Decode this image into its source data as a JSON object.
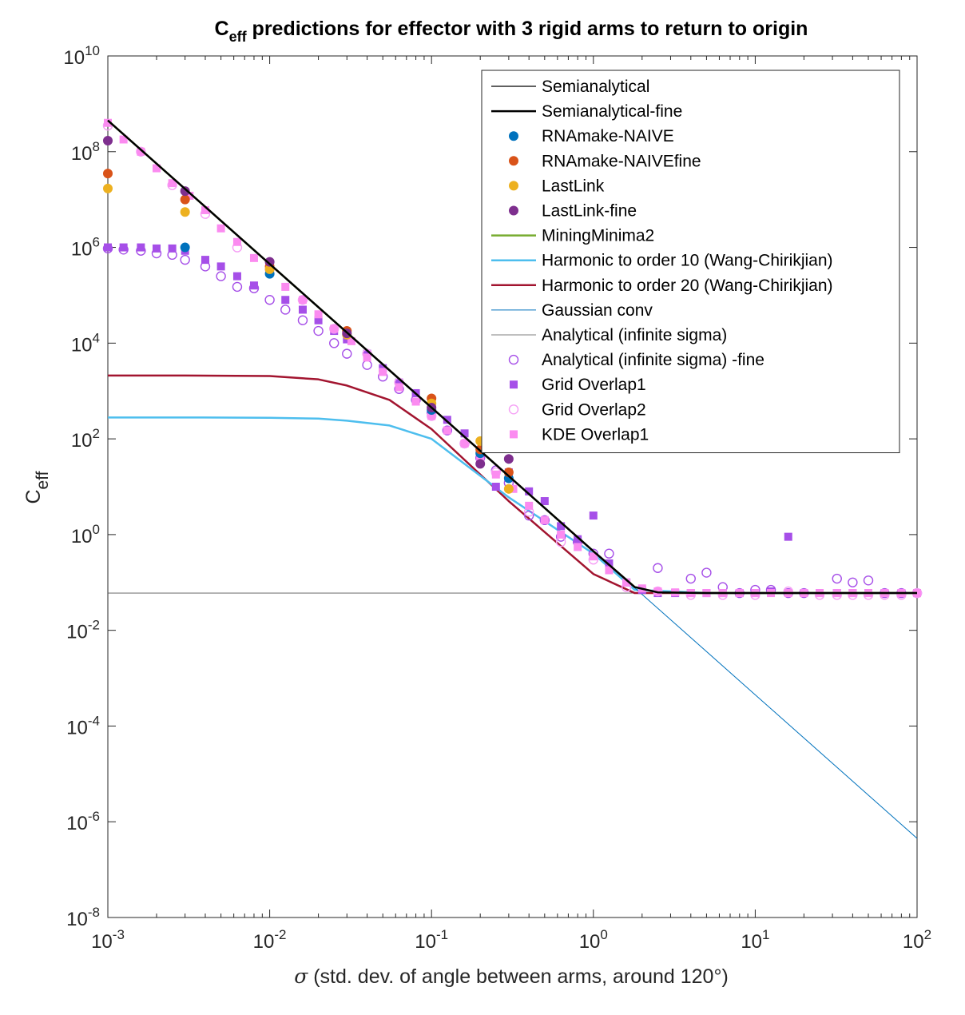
{
  "chart_data": {
    "type": "line",
    "title": "C",
    "title_sub": "eff",
    "title_rest": " predictions for effector with 3 rigid arms to return to origin",
    "xlabel_sym": "σ",
    "xlabel_rest": " (std. dev. of angle between arms, around 120°)",
    "ylabel": "C",
    "ylabel_sub": "eff",
    "xscale": "log",
    "yscale": "log",
    "xlim": [
      0.001,
      100
    ],
    "ylim": [
      1e-08,
      10000000000.0
    ],
    "x_ticks": [
      {
        "base": "10",
        "exp": "-3",
        "value": 0.001
      },
      {
        "base": "10",
        "exp": "-2",
        "value": 0.01
      },
      {
        "base": "10",
        "exp": "-1",
        "value": 0.1
      },
      {
        "base": "10",
        "exp": "0",
        "value": 1
      },
      {
        "base": "10",
        "exp": "1",
        "value": 10
      },
      {
        "base": "10",
        "exp": "2",
        "value": 100
      }
    ],
    "y_ticks": [
      {
        "base": "10",
        "exp": "-8",
        "value": 1e-08
      },
      {
        "base": "10",
        "exp": "-6",
        "value": 1e-06
      },
      {
        "base": "10",
        "exp": "-4",
        "value": 0.0001
      },
      {
        "base": "10",
        "exp": "-2",
        "value": 0.01
      },
      {
        "base": "10",
        "exp": "0",
        "value": 1
      },
      {
        "base": "10",
        "exp": "2",
        "value": 100.0
      },
      {
        "base": "10",
        "exp": "4",
        "value": 10000.0
      },
      {
        "base": "10",
        "exp": "6",
        "value": 1000000.0
      },
      {
        "base": "10",
        "exp": "8",
        "value": 100000000.0
      },
      {
        "base": "10",
        "exp": "10",
        "value": 10000000000.0
      }
    ],
    "grid": false,
    "legend_position": "top-right",
    "series": [
      {
        "name": "Semianalytical",
        "kind": "line",
        "color": "#000000",
        "width": 1.2,
        "x": [
          0.001,
          0.01,
          0.1,
          1,
          1.8,
          2.5,
          5,
          10,
          100
        ],
        "y": [
          450000000.0,
          450000.0,
          450,
          0.45,
          0.08,
          0.062,
          0.06,
          0.06,
          0.06
        ]
      },
      {
        "name": "Semianalytical-fine",
        "kind": "line",
        "color": "#000000",
        "width": 2.5,
        "x": [
          0.001,
          0.01,
          0.1,
          1,
          1.8,
          2.5,
          5,
          10,
          100
        ],
        "y": [
          450000000.0,
          450000.0,
          450,
          0.45,
          0.08,
          0.062,
          0.06,
          0.06,
          0.06
        ]
      },
      {
        "name": "RNAmake-NAIVE",
        "kind": "point",
        "marker": "dot",
        "color": "#0072BD",
        "x": [
          0.003,
          0.01,
          0.1,
          0.2,
          0.3
        ],
        "y": [
          1000000.0,
          280000,
          400,
          50,
          15
        ]
      },
      {
        "name": "RNAmake-NAIVEfine",
        "kind": "point",
        "marker": "dot",
        "color": "#D95319",
        "x": [
          0.001,
          0.003,
          0.01,
          0.03,
          0.1,
          0.2,
          0.3
        ],
        "y": [
          35000000.0,
          10000000.0,
          400000,
          18000,
          700,
          60,
          20
        ]
      },
      {
        "name": "LastLink",
        "kind": "point",
        "marker": "dot",
        "color": "#EDB120",
        "x": [
          0.001,
          0.003,
          0.01,
          0.03,
          0.1,
          0.2,
          0.3
        ],
        "y": [
          17000000.0,
          5500000.0,
          350000,
          15000,
          550,
          90,
          9
        ]
      },
      {
        "name": "LastLink-fine",
        "kind": "point",
        "marker": "dot",
        "color": "#7E2F8E",
        "x": [
          0.001,
          0.003,
          0.01,
          0.03,
          0.1,
          0.2,
          0.3
        ],
        "y": [
          170000000.0,
          15000000.0,
          500000,
          16000,
          450,
          30,
          38
        ]
      },
      {
        "name": "MiningMinima2",
        "kind": "line",
        "color": "#77AC30",
        "width": 2.5,
        "x": [
          0.001,
          0.01,
          0.1,
          1,
          1.8,
          2.5,
          5,
          10,
          100
        ],
        "y": [
          450000000.0,
          450000.0,
          450,
          0.45,
          0.08,
          0.062,
          0.06,
          0.06,
          0.06
        ]
      },
      {
        "name": "Harmonic to order 10 (Wang-Chirikjian)",
        "kind": "line",
        "color": "#4DBEEE",
        "width": 2.5,
        "x": [
          0.001,
          0.003,
          0.01,
          0.02,
          0.03,
          0.055,
          0.1,
          0.3,
          1,
          1.8,
          5,
          100
        ],
        "y": [
          280,
          280,
          275,
          265,
          240,
          190,
          100,
          6,
          0.4,
          0.07,
          0.06,
          0.06
        ]
      },
      {
        "name": "Harmonic to order 20 (Wang-Chirikjian)",
        "kind": "line",
        "color": "#A2142F",
        "width": 2.5,
        "x": [
          0.001,
          0.003,
          0.01,
          0.02,
          0.03,
          0.055,
          0.1,
          0.3,
          1,
          1.8,
          5,
          100
        ],
        "y": [
          2100,
          2100,
          2050,
          1750,
          1300,
          650,
          160,
          5,
          0.15,
          0.06,
          0.06,
          0.06
        ]
      },
      {
        "name": "Gaussian conv",
        "kind": "line",
        "color": "#0072BD",
        "width": 1.0,
        "x": [
          0.001,
          0.01,
          0.1,
          1,
          10,
          100
        ],
        "y": [
          450000000.0,
          450000.0,
          450,
          0.45,
          0.00045,
          4.5e-07
        ]
      },
      {
        "name": "Analytical (infinite sigma)",
        "kind": "line",
        "color": "#555555",
        "width": 0.8,
        "x": [
          0.001,
          100
        ],
        "y": [
          0.06,
          0.06
        ]
      },
      {
        "name": "Analytical (infinite sigma) -fine",
        "kind": "point",
        "marker": "ring",
        "color": "#A64FE8",
        "x": [
          0.001,
          0.00125,
          0.0016,
          0.002,
          0.0025,
          0.003,
          0.004,
          0.005,
          0.0063,
          0.008,
          0.01,
          0.0125,
          0.016,
          0.02,
          0.025,
          0.03,
          0.04,
          0.05,
          0.063,
          0.08,
          0.1,
          0.125,
          0.16,
          0.2,
          0.25,
          0.3,
          0.4,
          0.5,
          0.63,
          0.8,
          1,
          1.25,
          2.5,
          4,
          5,
          6.3,
          8,
          10,
          12.5,
          16,
          20,
          32,
          40,
          50,
          63,
          80,
          100
        ],
        "y": [
          950000,
          900000,
          850000,
          750000,
          700000,
          550000,
          400000,
          250000,
          150000,
          140000,
          80000,
          50000,
          30000,
          18000,
          10000,
          6000,
          3500,
          2000,
          1100,
          650,
          350,
          150,
          80,
          40,
          22,
          12,
          2.5,
          2.0,
          0.9,
          0.7,
          0.4,
          0.4,
          0.2,
          0.12,
          0.16,
          0.08,
          0.06,
          0.07,
          0.07,
          0.06,
          0.06,
          0.12,
          0.1,
          0.11,
          0.06,
          0.06,
          0.06
        ]
      },
      {
        "name": "Grid Overlap1",
        "kind": "point",
        "marker": "square",
        "color": "#A64FE8",
        "x": [
          0.001,
          0.00125,
          0.0016,
          0.002,
          0.0025,
          0.003,
          0.004,
          0.005,
          0.0063,
          0.008,
          0.01,
          0.0125,
          0.016,
          0.02,
          0.025,
          0.03,
          0.04,
          0.05,
          0.063,
          0.08,
          0.1,
          0.125,
          0.16,
          0.2,
          0.25,
          0.3,
          0.4,
          0.5,
          0.63,
          0.8,
          1,
          1.25,
          1.6,
          2,
          2.5,
          3.2,
          4,
          5,
          6.3,
          8,
          10,
          12.5,
          16,
          20,
          25,
          32,
          40,
          50,
          63,
          80,
          100
        ],
        "y": [
          1000000.0,
          1000000.0,
          1000000.0,
          950000,
          950000,
          850000,
          550000,
          400000,
          250000,
          160000,
          350000,
          80000,
          50000,
          30000,
          18000,
          12000,
          6000,
          3000,
          1500,
          900,
          500,
          250,
          130,
          50,
          10,
          20,
          8,
          5,
          1.5,
          0.8,
          2.5,
          0.25,
          0.1,
          0.07,
          0.06,
          0.06,
          0.06,
          0.06,
          0.06,
          0.06,
          0.06,
          0.065,
          0.9,
          0.06,
          0.06,
          0.06,
          0.06,
          0.06,
          0.06,
          0.06,
          0.06
        ]
      },
      {
        "name": "Grid Overlap2",
        "kind": "point",
        "marker": "ring",
        "color": "#F59EF5",
        "x": [
          0.001,
          0.0016,
          0.0025,
          0.004,
          0.0063,
          0.01,
          0.016,
          0.025,
          0.04,
          0.063,
          0.1,
          0.16,
          0.25,
          0.4,
          0.63,
          1,
          1.6,
          2.5,
          4,
          6.3,
          10,
          16,
          25,
          32,
          40,
          50,
          63,
          80,
          100
        ],
        "y": [
          350000000.0,
          100000000.0,
          20000000.0,
          5000000.0,
          1000000.0,
          350000,
          80000,
          20000,
          6000,
          1500,
          300,
          80,
          20,
          3,
          0.7,
          0.3,
          0.08,
          0.065,
          0.055,
          0.055,
          0.055,
          0.065,
          0.055,
          0.055,
          0.055,
          0.055,
          0.055,
          0.055,
          0.06
        ]
      },
      {
        "name": "KDE Overlap1",
        "kind": "point",
        "marker": "square",
        "color": "#FB8BF0",
        "x": [
          0.001,
          0.00125,
          0.0016,
          0.002,
          0.0025,
          0.0032,
          0.004,
          0.005,
          0.0063,
          0.008,
          0.01,
          0.0125,
          0.016,
          0.02,
          0.025,
          0.032,
          0.04,
          0.05,
          0.063,
          0.08,
          0.1,
          0.125,
          0.16,
          0.2,
          0.25,
          0.32,
          0.4,
          0.5,
          0.63,
          0.8,
          1,
          1.25,
          1.6,
          2,
          2.5,
          3.2,
          4,
          5,
          6.3,
          8,
          10,
          12.5,
          16,
          20,
          25,
          32,
          40,
          50,
          63,
          80,
          100
        ],
        "y": [
          400000000.0,
          180000000.0,
          100000000.0,
          45000000.0,
          22000000.0,
          12000000.0,
          6000000.0,
          2500000.0,
          1300000.0,
          600000,
          300000,
          150000,
          80000,
          40000,
          20000,
          11000,
          5000,
          2500,
          1200,
          600,
          300,
          150,
          80,
          35,
          18,
          9,
          4,
          2,
          1,
          0.55,
          0.35,
          0.18,
          0.1,
          0.075,
          0.065,
          0.062,
          0.06,
          0.06,
          0.06,
          0.06,
          0.06,
          0.06,
          0.06,
          0.06,
          0.06,
          0.06,
          0.06,
          0.06,
          0.06,
          0.06,
          0.06
        ]
      }
    ]
  }
}
